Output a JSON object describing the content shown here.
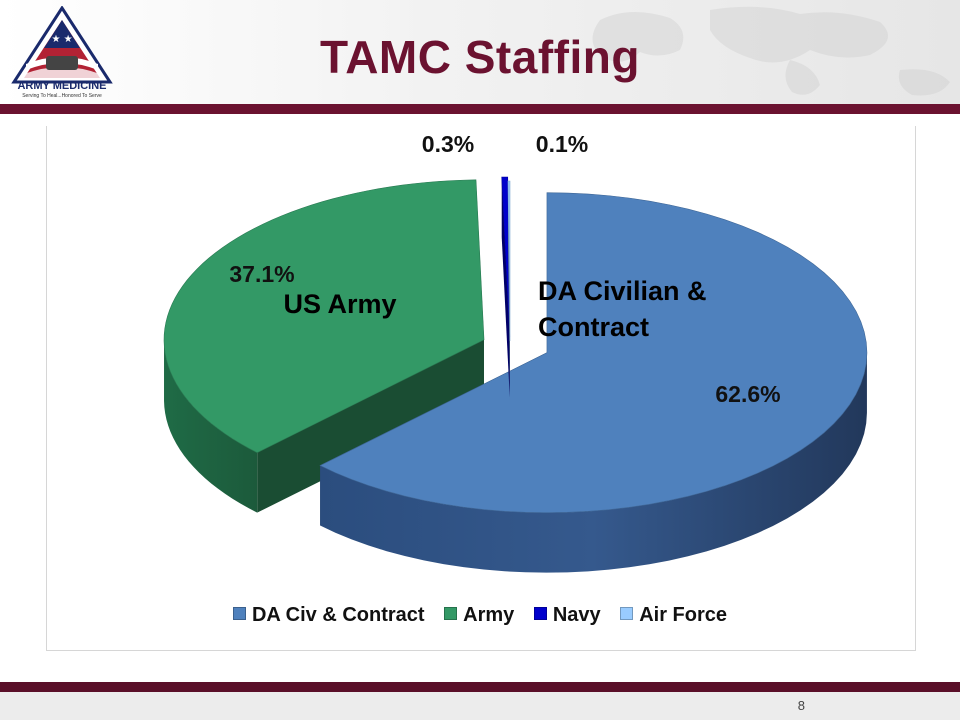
{
  "slide": {
    "title": "TAMC Staffing",
    "page_number": "8"
  },
  "logo": {
    "text": "ARMY MEDICINE",
    "tagline": "Serving To Heal...Honored To Serve"
  },
  "chart_data": {
    "type": "pie",
    "style": "3d-exploded",
    "legend_position": "bottom",
    "series": [
      {
        "name": "DA Civ & Contract",
        "label": "DA Civilian & Contract",
        "value": 62.6,
        "value_label": "62.6%",
        "color": "#4f81bd"
      },
      {
        "name": "Army",
        "label": "US Army",
        "value": 37.1,
        "value_label": "37.1%",
        "color": "#339966"
      },
      {
        "name": "Navy",
        "label": "",
        "value": 0.3,
        "value_label": "0.3%",
        "color": "#0000cc"
      },
      {
        "name": "Air Force",
        "label": "",
        "value": 0.1,
        "value_label": "0.1%",
        "color": "#99ccff"
      }
    ]
  }
}
